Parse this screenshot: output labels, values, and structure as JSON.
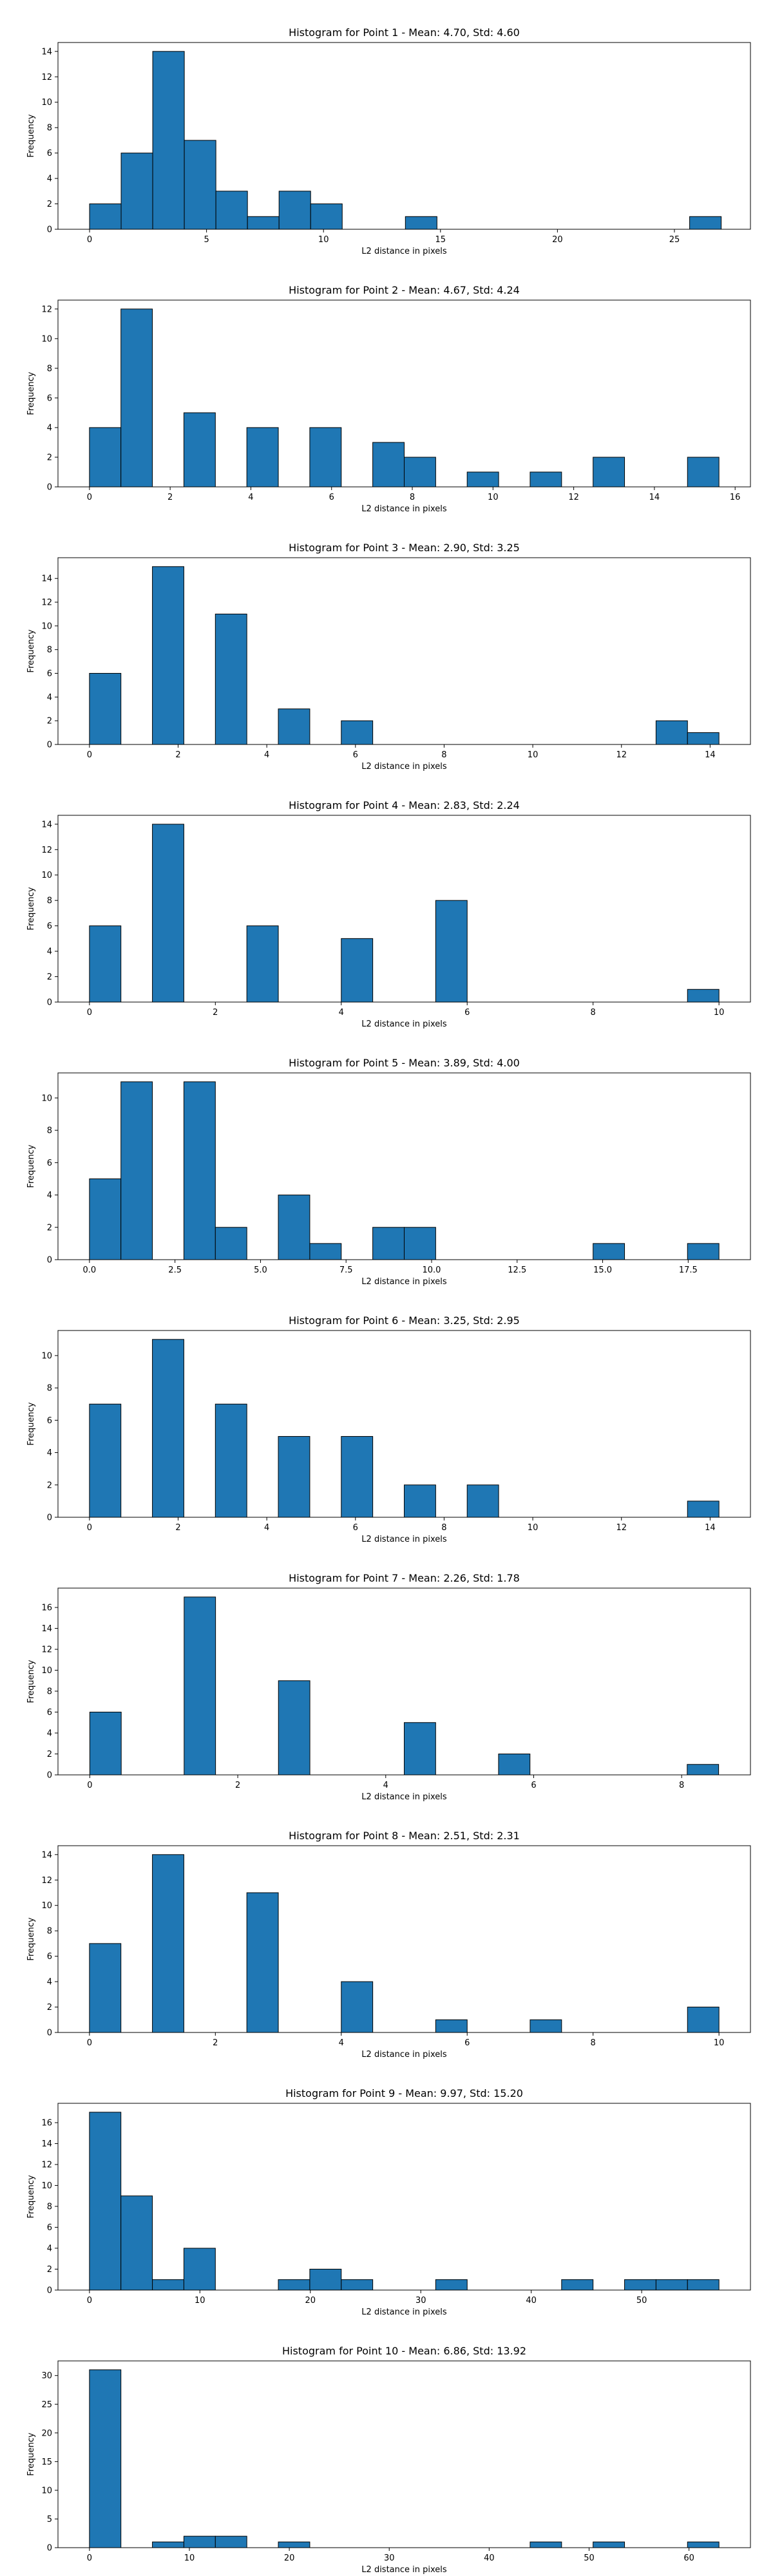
{
  "chart_data": [
    {
      "type": "bar",
      "title": "Histogram for Point 1 - Mean: 4.70, Std: 4.60",
      "xlabel": "L2 distance in pixels",
      "ylabel": "Frequency",
      "xlim": [
        -1.35,
        28.25
      ],
      "ylim": [
        0,
        14.7
      ],
      "xticks": [
        0,
        5,
        10,
        15,
        20,
        25
      ],
      "xtick_labels": [
        "0",
        "5",
        "10",
        "15",
        "20",
        "25"
      ],
      "yticks": [
        0,
        2,
        4,
        6,
        8,
        10,
        12,
        14
      ],
      "bin_edges": [
        0,
        1.35,
        2.7,
        4.05,
        5.4,
        6.75,
        8.1,
        9.45,
        10.8,
        12.15,
        13.5,
        14.85,
        16.2,
        17.55,
        18.9,
        20.25,
        21.6,
        22.95,
        24.3,
        25.65,
        27.0
      ],
      "counts": [
        2,
        6,
        14,
        7,
        3,
        1,
        3,
        2,
        0,
        0,
        1,
        0,
        0,
        0,
        0,
        0,
        0,
        0,
        0,
        1
      ],
      "bar_color": "#1f77b4"
    },
    {
      "type": "bar",
      "title": "Histogram for Point 2 - Mean: 4.67, Std: 4.24",
      "xlabel": "L2 distance in pixels",
      "ylabel": "Frequency",
      "xlim": [
        -0.78,
        16.38
      ],
      "ylim": [
        0,
        12.6
      ],
      "xticks": [
        0,
        2,
        4,
        6,
        8,
        10,
        12,
        14,
        16
      ],
      "xtick_labels": [
        "0",
        "2",
        "4",
        "6",
        "8",
        "10",
        "12",
        "14",
        "16"
      ],
      "yticks": [
        0,
        2,
        4,
        6,
        8,
        10,
        12
      ],
      "bin_edges": [
        0,
        0.78,
        1.56,
        2.34,
        3.12,
        3.9,
        4.68,
        5.46,
        6.24,
        7.02,
        7.8,
        8.58,
        9.36,
        10.14,
        10.92,
        11.7,
        12.48,
        13.26,
        14.04,
        14.82,
        15.6
      ],
      "counts": [
        4,
        12,
        0,
        5,
        0,
        4,
        0,
        4,
        0,
        3,
        2,
        0,
        1,
        0,
        1,
        0,
        2,
        0,
        0,
        2
      ],
      "bar_color": "#1f77b4"
    },
    {
      "type": "bar",
      "title": "Histogram for Point 3 - Mean: 2.90, Std: 3.25",
      "xlabel": "L2 distance in pixels",
      "ylabel": "Frequency",
      "xlim": [
        -0.71,
        14.91
      ],
      "ylim": [
        0,
        15.75
      ],
      "xticks": [
        0,
        2,
        4,
        6,
        8,
        10,
        12,
        14
      ],
      "xtick_labels": [
        "0",
        "2",
        "4",
        "6",
        "8",
        "10",
        "12",
        "14"
      ],
      "yticks": [
        0,
        2,
        4,
        6,
        8,
        10,
        12,
        14
      ],
      "bin_edges": [
        0,
        0.71,
        1.42,
        2.13,
        2.84,
        3.55,
        4.26,
        4.97,
        5.68,
        6.39,
        7.1,
        7.81,
        8.52,
        9.23,
        9.94,
        10.65,
        11.36,
        12.07,
        12.78,
        13.49,
        14.2
      ],
      "counts": [
        6,
        0,
        15,
        0,
        11,
        0,
        3,
        0,
        2,
        0,
        0,
        0,
        0,
        0,
        0,
        0,
        0,
        0,
        2,
        1
      ],
      "bar_color": "#1f77b4"
    },
    {
      "type": "bar",
      "title": "Histogram for Point 4 - Mean: 2.83, Std: 2.24",
      "xlabel": "L2 distance in pixels",
      "ylabel": "Frequency",
      "xlim": [
        -0.5,
        10.5
      ],
      "ylim": [
        0,
        14.7
      ],
      "xticks": [
        0,
        2,
        4,
        6,
        8,
        10
      ],
      "xtick_labels": [
        "0",
        "2",
        "4",
        "6",
        "8",
        "10"
      ],
      "yticks": [
        0,
        2,
        4,
        6,
        8,
        10,
        12,
        14
      ],
      "bin_edges": [
        0,
        0.5,
        1.0,
        1.5,
        2.0,
        2.5,
        3.0,
        3.5,
        4.0,
        4.5,
        5.0,
        5.5,
        6.0,
        6.5,
        7.0,
        7.5,
        8.0,
        8.5,
        9.0,
        9.5,
        10.0
      ],
      "counts": [
        6,
        0,
        14,
        0,
        0,
        6,
        0,
        0,
        5,
        0,
        0,
        8,
        0,
        0,
        0,
        0,
        0,
        0,
        0,
        1
      ],
      "bar_color": "#1f77b4"
    },
    {
      "type": "bar",
      "title": "Histogram for Point 5 - Mean: 3.89, Std: 4.00",
      "xlabel": "L2 distance in pixels",
      "ylabel": "Frequency",
      "xlim": [
        -0.92,
        19.32
      ],
      "ylim": [
        0,
        11.55
      ],
      "xticks": [
        0,
        2.5,
        5,
        7.5,
        10,
        12.5,
        15,
        17.5
      ],
      "xtick_labels": [
        "0.0",
        "2.5",
        "5.0",
        "7.5",
        "10.0",
        "12.5",
        "15.0",
        "17.5"
      ],
      "yticks": [
        0,
        2,
        4,
        6,
        8,
        10
      ],
      "bin_edges": [
        0,
        0.92,
        1.84,
        2.76,
        3.68,
        4.6,
        5.52,
        6.44,
        7.36,
        8.28,
        9.2,
        10.12,
        11.04,
        11.96,
        12.88,
        13.8,
        14.72,
        15.64,
        16.56,
        17.48,
        18.4
      ],
      "counts": [
        5,
        11,
        0,
        11,
        2,
        0,
        4,
        1,
        0,
        2,
        2,
        0,
        0,
        0,
        0,
        0,
        1,
        0,
        0,
        1
      ],
      "bar_color": "#1f77b4"
    },
    {
      "type": "bar",
      "title": "Histogram for Point 6 - Mean: 3.25, Std: 2.95",
      "xlabel": "L2 distance in pixels",
      "ylabel": "Frequency",
      "xlim": [
        -0.71,
        14.91
      ],
      "ylim": [
        0,
        11.55
      ],
      "xticks": [
        0,
        2,
        4,
        6,
        8,
        10,
        12,
        14
      ],
      "xtick_labels": [
        "0",
        "2",
        "4",
        "6",
        "8",
        "10",
        "12",
        "14"
      ],
      "yticks": [
        0,
        2,
        4,
        6,
        8,
        10
      ],
      "bin_edges": [
        0,
        0.71,
        1.42,
        2.13,
        2.84,
        3.55,
        4.26,
        4.97,
        5.68,
        6.39,
        7.1,
        7.81,
        8.52,
        9.23,
        9.94,
        10.65,
        11.36,
        12.07,
        12.78,
        13.49,
        14.2
      ],
      "counts": [
        7,
        0,
        11,
        0,
        7,
        0,
        5,
        0,
        5,
        0,
        2,
        0,
        2,
        0,
        0,
        0,
        0,
        0,
        0,
        1
      ],
      "bar_color": "#1f77b4"
    },
    {
      "type": "bar",
      "title": "Histogram for Point 7 - Mean: 2.26, Std: 1.78",
      "xlabel": "L2 distance in pixels",
      "ylabel": "Frequency",
      "xlim": [
        -0.43,
        8.93
      ],
      "ylim": [
        0,
        17.85
      ],
      "xticks": [
        0,
        2,
        4,
        6,
        8
      ],
      "xtick_labels": [
        "0",
        "2",
        "4",
        "6",
        "8"
      ],
      "yticks": [
        0,
        2,
        4,
        6,
        8,
        10,
        12,
        14,
        16
      ],
      "bin_edges": [
        0,
        0.425,
        0.85,
        1.275,
        1.7,
        2.125,
        2.55,
        2.975,
        3.4,
        3.825,
        4.25,
        4.675,
        5.1,
        5.525,
        5.95,
        6.375,
        6.8,
        7.225,
        7.65,
        8.075,
        8.5
      ],
      "counts": [
        6,
        0,
        0,
        17,
        0,
        0,
        9,
        0,
        0,
        0,
        5,
        0,
        0,
        2,
        0,
        0,
        0,
        0,
        0,
        1
      ],
      "bar_color": "#1f77b4"
    },
    {
      "type": "bar",
      "title": "Histogram for Point 8 - Mean: 2.51, Std: 2.31",
      "xlabel": "L2 distance in pixels",
      "ylabel": "Frequency",
      "xlim": [
        -0.5,
        10.5
      ],
      "ylim": [
        0,
        14.7
      ],
      "xticks": [
        0,
        2,
        4,
        6,
        8,
        10
      ],
      "xtick_labels": [
        "0",
        "2",
        "4",
        "6",
        "8",
        "10"
      ],
      "yticks": [
        0,
        2,
        4,
        6,
        8,
        10,
        12,
        14
      ],
      "bin_edges": [
        0,
        0.5,
        1.0,
        1.5,
        2.0,
        2.5,
        3.0,
        3.5,
        4.0,
        4.5,
        5.0,
        5.5,
        6.0,
        6.5,
        7.0,
        7.5,
        8.0,
        8.5,
        9.0,
        9.5,
        10.0
      ],
      "counts": [
        7,
        0,
        14,
        0,
        0,
        11,
        0,
        0,
        4,
        0,
        0,
        1,
        0,
        0,
        1,
        0,
        0,
        0,
        0,
        2
      ],
      "bar_color": "#1f77b4"
    },
    {
      "type": "bar",
      "title": "Histogram for Point 9 - Mean: 9.97, Std: 15.20",
      "xlabel": "L2 distance in pixels",
      "ylabel": "Frequency",
      "xlim": [
        -2.85,
        59.85
      ],
      "ylim": [
        0,
        17.85
      ],
      "xticks": [
        0,
        10,
        20,
        30,
        40,
        50
      ],
      "xtick_labels": [
        "0",
        "10",
        "20",
        "30",
        "40",
        "50"
      ],
      "yticks": [
        0,
        2,
        4,
        6,
        8,
        10,
        12,
        14,
        16
      ],
      "bin_edges": [
        0,
        2.85,
        5.7,
        8.55,
        11.4,
        14.25,
        17.1,
        19.95,
        22.8,
        25.65,
        28.5,
        31.35,
        34.2,
        37.05,
        39.9,
        42.75,
        45.6,
        48.45,
        51.3,
        54.15,
        57.0
      ],
      "counts": [
        17,
        9,
        1,
        4,
        0,
        0,
        1,
        2,
        1,
        0,
        0,
        1,
        0,
        0,
        0,
        1,
        0,
        1,
        1,
        1
      ],
      "bar_color": "#1f77b4"
    },
    {
      "type": "bar",
      "title": "Histogram for Point 10 - Mean: 6.86, Std: 13.92",
      "xlabel": "L2 distance in pixels",
      "ylabel": "Frequency",
      "xlim": [
        -3.15,
        66.15
      ],
      "ylim": [
        0,
        32.55
      ],
      "xticks": [
        0,
        10,
        20,
        30,
        40,
        50,
        60
      ],
      "xtick_labels": [
        "0",
        "10",
        "20",
        "30",
        "40",
        "50",
        "60"
      ],
      "yticks": [
        0,
        5,
        10,
        15,
        20,
        25,
        30
      ],
      "bin_edges": [
        0,
        3.15,
        6.3,
        9.45,
        12.6,
        15.75,
        18.9,
        22.05,
        25.2,
        28.35,
        31.5,
        34.65,
        37.8,
        40.95,
        44.1,
        47.25,
        50.4,
        53.55,
        56.7,
        59.85,
        63.0
      ],
      "counts": [
        31,
        0,
        1,
        2,
        2,
        0,
        1,
        0,
        0,
        0,
        0,
        0,
        0,
        0,
        1,
        0,
        1,
        0,
        0,
        1
      ],
      "bar_color": "#1f77b4"
    }
  ]
}
